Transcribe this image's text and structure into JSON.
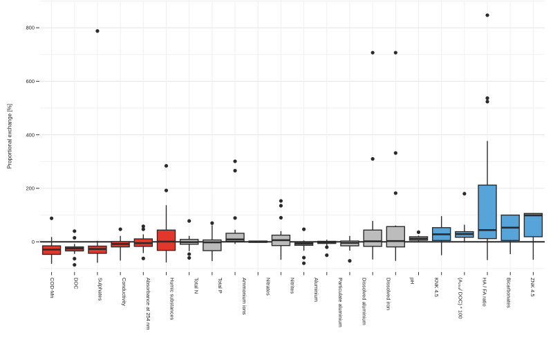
{
  "chart_data": {
    "type": "boxplot",
    "title": "",
    "ylabel": "Proportional exchange [%]",
    "y_axis": {
      "tick_labels": [
        0,
        200,
        400,
        600,
        800
      ],
      "minor_gridlines": [
        -100,
        100,
        300,
        500,
        700,
        900
      ],
      "range": [
        -113,
        900
      ],
      "grid": true
    },
    "legend": "none",
    "x_labels": [
      "COD-Mn",
      "DOC",
      "Sulphates",
      "Conductivity",
      "Absorbance at 254 nm",
      "Humic substances",
      "Total N",
      "Total P",
      "Ammonium ions",
      "Nitrates",
      "Nitrites",
      "Aluminium",
      "Particulate aluminium",
      "Dissolved aluminium",
      "Dissolved iron",
      "pH",
      "KNK 4.5",
      "(A₂₅₄/ DOC) * 100",
      "HA / FA ratio",
      "Bicarbonates",
      "ZNK 4.5"
    ],
    "colors": {
      "red_group": "#e2382c",
      "gray_group": "#bcbcbc",
      "blue_group": "#57a4d9",
      "box_stroke": "#2b2b2b",
      "outlier_dot": "#2b2b2b",
      "zero_line": "#1a1a1a",
      "grid_major": "#e4e4e4",
      "grid_minor": "#efefef",
      "axis_text": "#1c1c1c"
    },
    "boxes": [
      {
        "label": "COD-Mn",
        "group": "red",
        "q1": -47,
        "median": -29,
        "q3": -15,
        "whisker_low": -82,
        "whisker_high": 18,
        "outliers": [
          88
        ]
      },
      {
        "label": "DOC",
        "group": "red",
        "q1": -34,
        "median": -25,
        "q3": -19,
        "whisker_low": -45,
        "whisker_high": -8,
        "outliers": [
          40,
          15,
          -63,
          -86
        ]
      },
      {
        "label": "Sulphates",
        "group": "red",
        "q1": -43,
        "median": -27,
        "q3": -16,
        "whisker_low": -78,
        "whisker_high": 4,
        "outliers": [
          788
        ]
      },
      {
        "label": "Conductivity",
        "group": "red",
        "q1": -19,
        "median": -8,
        "q3": 1,
        "whisker_low": -70,
        "whisker_high": 22,
        "outliers": [
          47
        ]
      },
      {
        "label": "Absorbance at 254 nm",
        "group": "red",
        "q1": -17,
        "median": -5,
        "q3": 11,
        "whisker_low": -42,
        "whisker_high": 28,
        "outliers": [
          58,
          47,
          -62
        ]
      },
      {
        "label": "Humic substances",
        "group": "red",
        "q1": -32,
        "median": 1,
        "q3": 44,
        "whisker_low": -77,
        "whisker_high": 137,
        "outliers": [
          284,
          192
        ]
      },
      {
        "label": "Total N",
        "group": "gray",
        "q1": -9,
        "median": -1,
        "q3": 9,
        "whisker_low": -35,
        "whisker_high": 22,
        "outliers": [
          78,
          -46,
          -60
        ]
      },
      {
        "label": "Total P",
        "group": "gray",
        "q1": -33,
        "median": -2,
        "q3": 7,
        "whisker_low": -72,
        "whisker_high": 62,
        "outliers": [
          70
        ]
      },
      {
        "label": "Ammonium ions",
        "group": "gray",
        "q1": 2,
        "median": 9,
        "q3": 32,
        "whisker_low": -8,
        "whisker_high": 45,
        "outliers": [
          301,
          266,
          89
        ]
      },
      {
        "label": "Nitrates",
        "group": "gray",
        "q1": -2,
        "median": 0,
        "q3": 3,
        "whisker_low": -2,
        "whisker_high": 3,
        "outliers": []
      },
      {
        "label": "Nitrites",
        "group": "gray",
        "q1": -14,
        "median": 6,
        "q3": 25,
        "whisker_low": -67,
        "whisker_high": 40,
        "outliers": [
          153,
          135,
          90
        ]
      },
      {
        "label": "Aluminium",
        "group": "gray",
        "q1": -13,
        "median": -7,
        "q3": -2,
        "whisker_low": -33,
        "whisker_high": 5,
        "outliers": [
          47,
          -59,
          -80
        ]
      },
      {
        "label": "Particulate aluminium",
        "group": "gray",
        "q1": -6,
        "median": -2,
        "q3": 2,
        "whisker_low": -14,
        "whisker_high": 8,
        "outliers": [
          -20,
          -50
        ]
      },
      {
        "label": null,
        "group": "gray",
        "q1": -15,
        "median": -4,
        "q3": 3,
        "whisker_low": -33,
        "whisker_high": 22,
        "outliers": [
          -71
        ]
      },
      {
        "label": "Dissolved aluminium",
        "group": "gray",
        "q1": -17,
        "median": 2,
        "q3": 44,
        "whisker_low": -66,
        "whisker_high": 78,
        "outliers": [
          707,
          310
        ]
      },
      {
        "label": "Dissolved iron",
        "group": "gray",
        "q1": -19,
        "median": 3,
        "q3": 57,
        "whisker_low": -71,
        "whisker_high": 61,
        "outliers": [
          707,
          332,
          182
        ]
      },
      {
        "label": "pH",
        "group": "gray",
        "q1": 6,
        "median": 12,
        "q3": 19,
        "whisker_low": -2,
        "whisker_high": 23,
        "outliers": [
          36
        ]
      },
      {
        "label": "KNK 4.5",
        "group": "blue",
        "q1": 5,
        "median": 28,
        "q3": 53,
        "whisker_low": -50,
        "whisker_high": 96,
        "outliers": []
      },
      {
        "label": "(A₂₅₄/ DOC) * 100",
        "group": "blue",
        "q1": 17,
        "median": 29,
        "q3": 38,
        "whisker_low": -3,
        "whisker_high": 64,
        "outliers": [
          180
        ]
      },
      {
        "label": "HA / FA ratio",
        "group": "blue",
        "q1": 12,
        "median": 44,
        "q3": 212,
        "whisker_low": -68,
        "whisker_high": 377,
        "outliers": [
          847,
          537,
          524
        ]
      },
      {
        "label": "Bicarbonates",
        "group": "blue",
        "q1": 5,
        "median": 53,
        "q3": 100,
        "whisker_low": -46,
        "whisker_high": 100,
        "outliers": []
      },
      {
        "label": "ZNK 4.5",
        "group": "blue",
        "q1": 19,
        "median": 99,
        "q3": 106,
        "whisker_low": -67,
        "whisker_high": 106,
        "outliers": []
      }
    ]
  }
}
